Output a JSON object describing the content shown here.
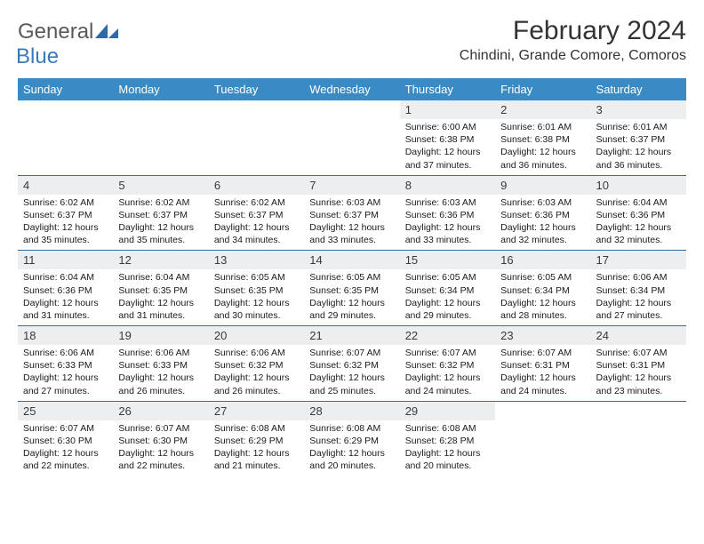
{
  "logo": {
    "general": "General",
    "blue": "Blue"
  },
  "title": "February 2024",
  "location": "Chindini, Grande Comore, Comoros",
  "colors": {
    "header_bg": "#3a8ac4",
    "header_text": "#ffffff",
    "row_border": "#3a6a9a",
    "daynum_bg": "#eceef0",
    "logo_gray": "#5a5a5a",
    "logo_blue": "#3a7ab8"
  },
  "day_headers": [
    "Sunday",
    "Monday",
    "Tuesday",
    "Wednesday",
    "Thursday",
    "Friday",
    "Saturday"
  ],
  "weeks": [
    [
      null,
      null,
      null,
      null,
      {
        "n": "1",
        "sr": "6:00 AM",
        "ss": "6:38 PM",
        "dl": "12 hours and 37 minutes."
      },
      {
        "n": "2",
        "sr": "6:01 AM",
        "ss": "6:38 PM",
        "dl": "12 hours and 36 minutes."
      },
      {
        "n": "3",
        "sr": "6:01 AM",
        "ss": "6:37 PM",
        "dl": "12 hours and 36 minutes."
      }
    ],
    [
      {
        "n": "4",
        "sr": "6:02 AM",
        "ss": "6:37 PM",
        "dl": "12 hours and 35 minutes."
      },
      {
        "n": "5",
        "sr": "6:02 AM",
        "ss": "6:37 PM",
        "dl": "12 hours and 35 minutes."
      },
      {
        "n": "6",
        "sr": "6:02 AM",
        "ss": "6:37 PM",
        "dl": "12 hours and 34 minutes."
      },
      {
        "n": "7",
        "sr": "6:03 AM",
        "ss": "6:37 PM",
        "dl": "12 hours and 33 minutes."
      },
      {
        "n": "8",
        "sr": "6:03 AM",
        "ss": "6:36 PM",
        "dl": "12 hours and 33 minutes."
      },
      {
        "n": "9",
        "sr": "6:03 AM",
        "ss": "6:36 PM",
        "dl": "12 hours and 32 minutes."
      },
      {
        "n": "10",
        "sr": "6:04 AM",
        "ss": "6:36 PM",
        "dl": "12 hours and 32 minutes."
      }
    ],
    [
      {
        "n": "11",
        "sr": "6:04 AM",
        "ss": "6:36 PM",
        "dl": "12 hours and 31 minutes."
      },
      {
        "n": "12",
        "sr": "6:04 AM",
        "ss": "6:35 PM",
        "dl": "12 hours and 31 minutes."
      },
      {
        "n": "13",
        "sr": "6:05 AM",
        "ss": "6:35 PM",
        "dl": "12 hours and 30 minutes."
      },
      {
        "n": "14",
        "sr": "6:05 AM",
        "ss": "6:35 PM",
        "dl": "12 hours and 29 minutes."
      },
      {
        "n": "15",
        "sr": "6:05 AM",
        "ss": "6:34 PM",
        "dl": "12 hours and 29 minutes."
      },
      {
        "n": "16",
        "sr": "6:05 AM",
        "ss": "6:34 PM",
        "dl": "12 hours and 28 minutes."
      },
      {
        "n": "17",
        "sr": "6:06 AM",
        "ss": "6:34 PM",
        "dl": "12 hours and 27 minutes."
      }
    ],
    [
      {
        "n": "18",
        "sr": "6:06 AM",
        "ss": "6:33 PM",
        "dl": "12 hours and 27 minutes."
      },
      {
        "n": "19",
        "sr": "6:06 AM",
        "ss": "6:33 PM",
        "dl": "12 hours and 26 minutes."
      },
      {
        "n": "20",
        "sr": "6:06 AM",
        "ss": "6:32 PM",
        "dl": "12 hours and 26 minutes."
      },
      {
        "n": "21",
        "sr": "6:07 AM",
        "ss": "6:32 PM",
        "dl": "12 hours and 25 minutes."
      },
      {
        "n": "22",
        "sr": "6:07 AM",
        "ss": "6:32 PM",
        "dl": "12 hours and 24 minutes."
      },
      {
        "n": "23",
        "sr": "6:07 AM",
        "ss": "6:31 PM",
        "dl": "12 hours and 24 minutes."
      },
      {
        "n": "24",
        "sr": "6:07 AM",
        "ss": "6:31 PM",
        "dl": "12 hours and 23 minutes."
      }
    ],
    [
      {
        "n": "25",
        "sr": "6:07 AM",
        "ss": "6:30 PM",
        "dl": "12 hours and 22 minutes."
      },
      {
        "n": "26",
        "sr": "6:07 AM",
        "ss": "6:30 PM",
        "dl": "12 hours and 22 minutes."
      },
      {
        "n": "27",
        "sr": "6:08 AM",
        "ss": "6:29 PM",
        "dl": "12 hours and 21 minutes."
      },
      {
        "n": "28",
        "sr": "6:08 AM",
        "ss": "6:29 PM",
        "dl": "12 hours and 20 minutes."
      },
      {
        "n": "29",
        "sr": "6:08 AM",
        "ss": "6:28 PM",
        "dl": "12 hours and 20 minutes."
      },
      null,
      null
    ]
  ],
  "labels": {
    "sunrise": "Sunrise: ",
    "sunset": "Sunset: ",
    "daylight": "Daylight: "
  }
}
